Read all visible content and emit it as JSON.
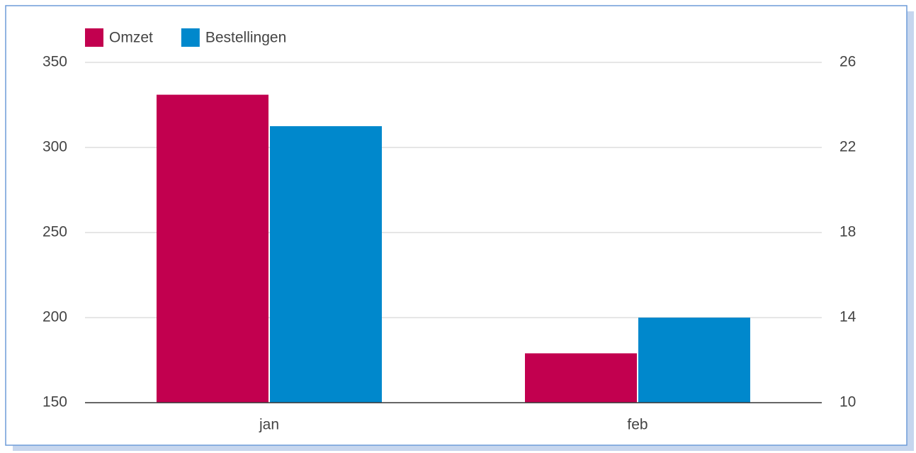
{
  "chart_data": {
    "type": "bar",
    "categories": [
      "jan",
      "feb"
    ],
    "series": [
      {
        "name": "Omzet",
        "color": "#c2004f",
        "values": [
          331,
          179
        ]
      },
      {
        "name": "Bestellingen",
        "color": "#0088cc",
        "values": [
          23,
          14
        ],
        "axis": "y2"
      }
    ],
    "ylim": [
      150,
      350
    ],
    "yticks": [
      150,
      200,
      250,
      300,
      350
    ],
    "y2lim": [
      10,
      26
    ],
    "y2ticks": [
      10,
      14,
      18,
      22,
      26
    ],
    "grid": true,
    "legend": "top"
  }
}
